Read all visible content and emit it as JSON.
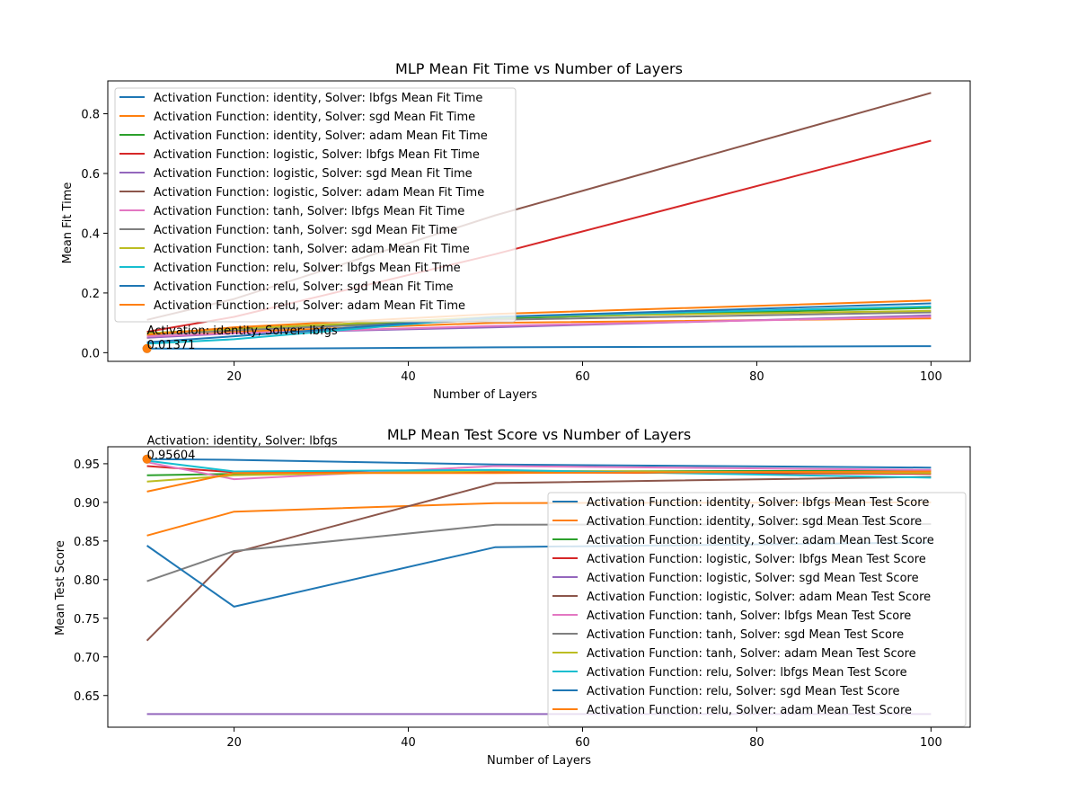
{
  "colors": [
    "#1f77b4",
    "#ff7f0e",
    "#2ca02c",
    "#d62728",
    "#9467bd",
    "#8c564b",
    "#e377c2",
    "#7f7f7f",
    "#bcbd22",
    "#17becf",
    "#1f77b4",
    "#ff7f0e"
  ],
  "chart_data": [
    {
      "type": "line",
      "title": "MLP Mean Fit Time vs Number of Layers",
      "xlabel": "Number of Layers",
      "ylabel": "Mean Fit Time",
      "x": [
        10,
        20,
        50,
        100
      ],
      "xlim": [
        5.5,
        104.5
      ],
      "ylim": [
        -0.029,
        0.91
      ],
      "xticks": [
        20,
        40,
        60,
        80,
        100
      ],
      "yticks": [
        0.0,
        0.2,
        0.4,
        0.6,
        0.8
      ],
      "ytick_labels": [
        "0.0",
        "0.2",
        "0.4",
        "0.6",
        "0.8"
      ],
      "legend_loc": "upper left",
      "series": [
        {
          "name": "Activation Function: identity, Solver: lbfgs Mean Fit Time",
          "values": [
            0.01371,
            0.013,
            0.018,
            0.022
          ]
        },
        {
          "name": "Activation Function: identity, Solver: sgd Mean Fit Time",
          "values": [
            0.05,
            0.07,
            0.1,
            0.115
          ]
        },
        {
          "name": "Activation Function: identity, Solver: adam Mean Fit Time",
          "values": [
            0.065,
            0.08,
            0.115,
            0.15
          ]
        },
        {
          "name": "Activation Function: logistic, Solver: lbfgs Mean Fit Time",
          "values": [
            0.07,
            0.12,
            0.33,
            0.71
          ]
        },
        {
          "name": "Activation Function: logistic, Solver: sgd Mean Fit Time",
          "values": [
            0.05,
            0.065,
            0.085,
            0.125
          ]
        },
        {
          "name": "Activation Function: logistic, Solver: adam Mean Fit Time",
          "values": [
            0.11,
            0.18,
            0.46,
            0.87
          ]
        },
        {
          "name": "Activation Function: tanh, Solver: lbfgs Mean Fit Time",
          "values": [
            0.055,
            0.065,
            0.09,
            0.12
          ]
        },
        {
          "name": "Activation Function: tanh, Solver: sgd Mean Fit Time",
          "values": [
            0.06,
            0.075,
            0.11,
            0.135
          ]
        },
        {
          "name": "Activation Function: tanh, Solver: adam Mean Fit Time",
          "values": [
            0.065,
            0.08,
            0.12,
            0.14
          ]
        },
        {
          "name": "Activation Function: relu, Solver: lbfgs Mean Fit Time",
          "values": [
            0.03,
            0.045,
            0.12,
            0.155
          ]
        },
        {
          "name": "Activation Function: relu, Solver: sgd Mean Fit Time",
          "values": [
            0.035,
            0.055,
            0.12,
            0.165
          ]
        },
        {
          "name": "Activation Function: relu, Solver: adam Mean Fit Time",
          "values": [
            0.06,
            0.085,
            0.13,
            0.175
          ]
        }
      ],
      "annotation": {
        "x": 10,
        "y": 0.01371,
        "line1": "Activation: identity, Solver: lbfgs",
        "line2": "0.01371"
      }
    },
    {
      "type": "line",
      "title": "MLP Mean Test Score vs Number of Layers",
      "xlabel": "Number of Layers",
      "ylabel": "Mean Test Score",
      "x": [
        10,
        20,
        50,
        100
      ],
      "xlim": [
        5.5,
        104.5
      ],
      "ylim": [
        0.609,
        0.972
      ],
      "xticks": [
        20,
        40,
        60,
        80,
        100
      ],
      "yticks": [
        0.65,
        0.7,
        0.75,
        0.8,
        0.85,
        0.9,
        0.95
      ],
      "ytick_labels": [
        "0.65",
        "0.70",
        "0.75",
        "0.80",
        "0.85",
        "0.90",
        "0.95"
      ],
      "legend_loc": "lower right",
      "series": [
        {
          "name": "Activation Function: identity, Solver: lbfgs Mean Test Score",
          "values": [
            0.95604,
            0.955,
            0.949,
            0.945
          ]
        },
        {
          "name": "Activation Function: identity, Solver: sgd Mean Test Score",
          "values": [
            0.857,
            0.888,
            0.899,
            0.9
          ]
        },
        {
          "name": "Activation Function: identity, Solver: adam Mean Test Score",
          "values": [
            0.935,
            0.937,
            0.94,
            0.941
          ]
        },
        {
          "name": "Activation Function: logistic, Solver: lbfgs Mean Test Score",
          "values": [
            0.947,
            0.939,
            0.939,
            0.937
          ]
        },
        {
          "name": "Activation Function: logistic, Solver: sgd Mean Test Score",
          "values": [
            0.626,
            0.626,
            0.626,
            0.626
          ]
        },
        {
          "name": "Activation Function: logistic, Solver: adam Mean Test Score",
          "values": [
            0.721,
            0.835,
            0.925,
            0.933
          ]
        },
        {
          "name": "Activation Function: tanh, Solver: lbfgs Mean Test Score",
          "values": [
            0.952,
            0.93,
            0.947,
            0.942
          ]
        },
        {
          "name": "Activation Function: tanh, Solver: sgd Mean Test Score",
          "values": [
            0.798,
            0.837,
            0.871,
            0.872
          ]
        },
        {
          "name": "Activation Function: tanh, Solver: adam Mean Test Score",
          "values": [
            0.927,
            0.935,
            0.941,
            0.938
          ]
        },
        {
          "name": "Activation Function: relu, Solver: lbfgs Mean Test Score",
          "values": [
            0.954,
            0.94,
            0.942,
            0.932
          ]
        },
        {
          "name": "Activation Function: relu, Solver: sgd Mean Test Score",
          "values": [
            0.844,
            0.765,
            0.842,
            0.848
          ]
        },
        {
          "name": "Activation Function: relu, Solver: adam Mean Test Score",
          "values": [
            0.914,
            0.938,
            0.938,
            0.94
          ]
        }
      ],
      "annotation": {
        "x": 10,
        "y": 0.95604,
        "line1": "Activation: identity, Solver: lbfgs",
        "line2": "0.95604"
      }
    }
  ]
}
